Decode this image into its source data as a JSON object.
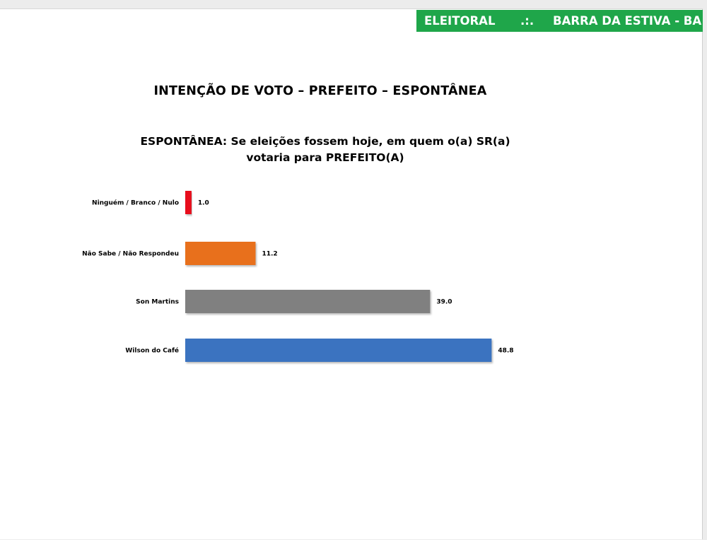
{
  "header": {
    "left_text": "ELEITORAL",
    "separator": ".:.",
    "right_text": "BARRA DA ESTIVA - BA",
    "background_color": "#1fa64a"
  },
  "title": "INTENÇÃO DE VOTO – PREFEITO – ESPONTÂNEA",
  "question": {
    "line1": "ESPONTÂNEA: Se eleições fossem hoje, em quem o(a) SR(a)",
    "line2": "votaria para PREFEITO(A)"
  },
  "chart_data": {
    "type": "bar",
    "orientation": "horizontal",
    "categories": [
      "Ninguém / Branco / Nulo",
      "Não Sabe / Não Respondeu",
      "Son Martins",
      "Wilson do Café"
    ],
    "values": [
      1.0,
      11.2,
      39.0,
      48.8
    ],
    "value_labels": [
      "1.0",
      "11.2",
      "39.0",
      "48.8"
    ],
    "colors": [
      "#e8101a",
      "#e8701a",
      "#808080",
      "#3b73c0"
    ],
    "grid": false,
    "legend": "none"
  }
}
